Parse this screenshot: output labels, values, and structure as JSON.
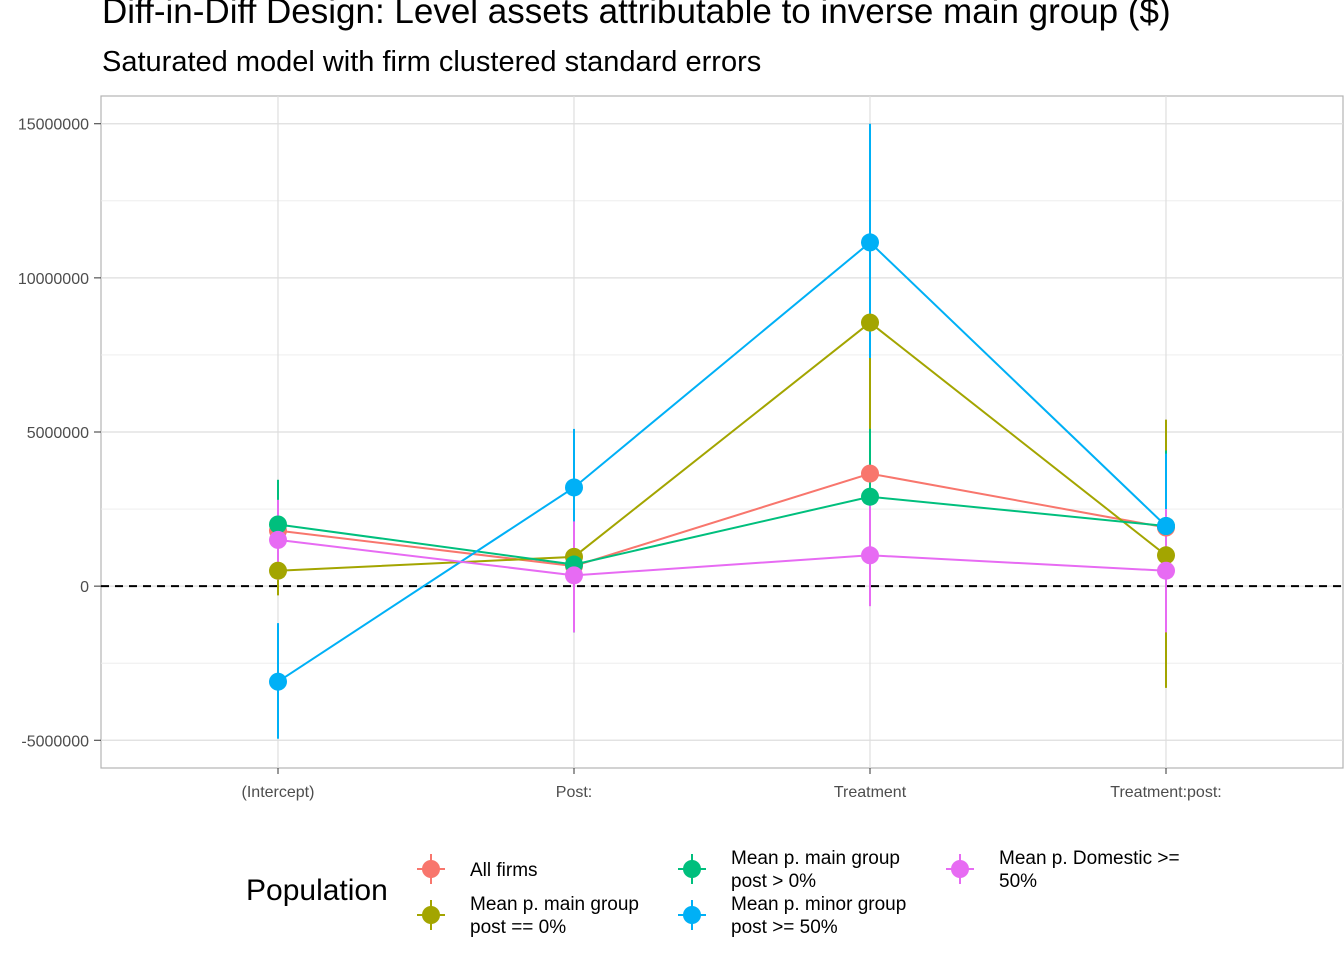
{
  "title": "Diff-in-Diff Design: Level assets attributable to inverse main group  ($)",
  "subtitle": "Saturated model with firm clustered standard errors",
  "chart_data": {
    "type": "line",
    "title": "Diff-in-Diff Design: Level assets attributable to inverse main group  ($)",
    "subtitle": "Saturated model with firm clustered standard errors",
    "xlabel": "",
    "ylabel": "",
    "categories": [
      "(Intercept)",
      "Post:",
      "Treatment",
      "Treatment:post:"
    ],
    "y_ticks": [
      15000000,
      10000000,
      5000000,
      0,
      -5000000
    ],
    "y_tick_labels": [
      "15000000",
      "10000000",
      "5000000",
      "0",
      "-5000000"
    ],
    "ylim": [
      -5900000,
      15900000
    ],
    "reference_line": {
      "y": 0,
      "style": "dashed"
    },
    "grid": true,
    "legend_title": "Population",
    "legend_position": "bottom",
    "series": [
      {
        "name": "All firms",
        "color": "#F8766D",
        "values": [
          1800000,
          650000,
          3650000,
          1900000
        ],
        "lower": [
          200000,
          -1000000,
          2200000,
          -500000
        ],
        "upper": [
          3400000,
          2300000,
          5100000,
          4300000
        ]
      },
      {
        "name": "Mean p. main group post == 0%",
        "color": "#A3A500",
        "values": [
          500000,
          950000,
          8550000,
          1000000
        ],
        "lower": [
          -300000,
          100000,
          5000000,
          -3300000
        ],
        "upper": [
          1300000,
          1800000,
          12100000,
          5400000
        ]
      },
      {
        "name": "Mean p. main group post > 0%",
        "color": "#00BF7D",
        "values": [
          2000000,
          700000,
          2900000,
          1950000
        ],
        "lower": [
          500000,
          -1500000,
          700000,
          -500000
        ],
        "upper": [
          3450000,
          2900000,
          5100000,
          4400000
        ]
      },
      {
        "name": "Mean p. minor group post >= 50%",
        "color": "#00B0F6",
        "values": [
          -3100000,
          3200000,
          11150000,
          1950000
        ],
        "lower": [
          -4950000,
          1300000,
          7400000,
          -400000
        ],
        "upper": [
          -1200000,
          5100000,
          15000000,
          4300000
        ]
      },
      {
        "name": "Mean p. Domestic >= 50%",
        "color": "#E76BF3",
        "values": [
          1500000,
          350000,
          1000000,
          500000
        ],
        "lower": [
          200000,
          -1500000,
          -650000,
          -1500000
        ],
        "upper": [
          2800000,
          2100000,
          2650000,
          2500000
        ]
      }
    ]
  },
  "legend": {
    "title": "Population",
    "items": [
      {
        "label": "All firms",
        "color": "#F8766D"
      },
      {
        "label": "Mean p. main group post == 0%",
        "color": "#A3A500"
      },
      {
        "label": "Mean p. main group post > 0%",
        "color": "#00BF7D"
      },
      {
        "label": "Mean p. minor group post >= 50%",
        "color": "#00B0F6"
      },
      {
        "label": "Mean p. Domestic >= 50%",
        "color": "#E76BF3"
      }
    ]
  }
}
